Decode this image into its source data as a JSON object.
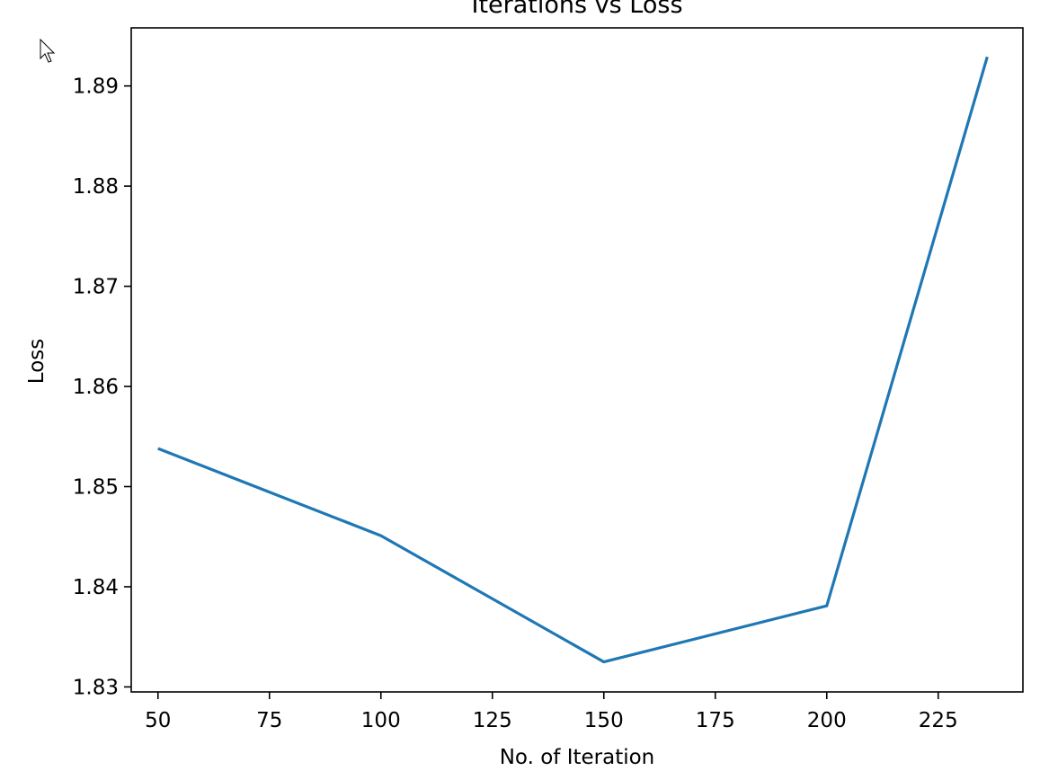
{
  "chart_data": {
    "type": "line",
    "title": "Iterations vs Loss",
    "xlabel": "No. of Iteration",
    "ylabel": "Loss",
    "xlim": [
      44,
      244
    ],
    "ylim": [
      1.8295,
      1.8958
    ],
    "xticks": [
      50,
      75,
      100,
      125,
      150,
      175,
      200,
      225
    ],
    "yticks": [
      1.83,
      1.84,
      1.85,
      1.86,
      1.87,
      1.88,
      1.89
    ],
    "xtick_labels": [
      "50",
      "75",
      "100",
      "125",
      "150",
      "175",
      "200",
      "225"
    ],
    "ytick_labels": [
      "1.83",
      "1.84",
      "1.85",
      "1.86",
      "1.87",
      "1.88",
      "1.89"
    ],
    "grid": false,
    "series": [
      {
        "color": "#1f77b4",
        "x": [
          50,
          100,
          150,
          200,
          236
        ],
        "y": [
          1.8538,
          1.8451,
          1.8325,
          1.8381,
          1.8929
        ]
      }
    ]
  },
  "cursor": {
    "icon": "mouse-pointer-icon"
  }
}
